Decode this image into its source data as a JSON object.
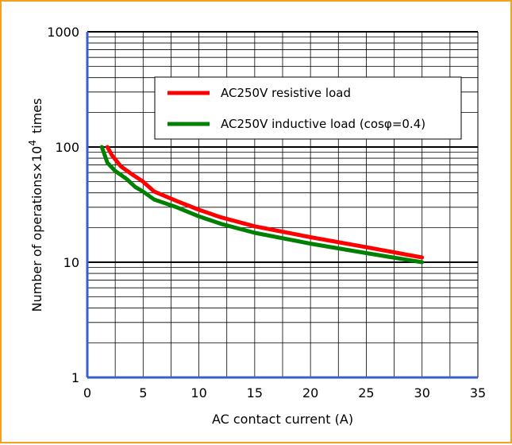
{
  "chart_data": {
    "type": "line",
    "title": "",
    "xlabel": "AC contact current (A)",
    "ylabel": {
      "prefix": "Number of operations×10",
      "superscript": "4",
      "suffix": "times"
    },
    "xlim": [
      0,
      35
    ],
    "ylim": [
      1,
      1000
    ],
    "y_scale": "log",
    "grid": true,
    "legend_position": "top-right",
    "x_ticks": [
      "0",
      "5",
      "10",
      "15",
      "20",
      "25",
      "30",
      "35"
    ],
    "y_ticks": [
      "1",
      "10",
      "100",
      "1000"
    ],
    "series": [
      {
        "name": "AC250V resistive load",
        "color": "#ff0000",
        "points": [
          [
            1.8,
            100
          ],
          [
            2.2,
            85
          ],
          [
            3,
            68
          ],
          [
            4,
            58
          ],
          [
            5,
            50
          ],
          [
            6,
            41
          ],
          [
            8,
            34
          ],
          [
            10,
            28.5
          ],
          [
            12,
            24.5
          ],
          [
            15,
            20.5
          ],
          [
            20,
            16.5
          ],
          [
            25,
            13.5
          ],
          [
            30,
            11
          ]
        ]
      },
      {
        "name": "AC250V inductive load (cosφ=0.4)",
        "color": "#008000",
        "points": [
          [
            1.3,
            100
          ],
          [
            1.8,
            73
          ],
          [
            2.5,
            62
          ],
          [
            3.5,
            53
          ],
          [
            4.3,
            45
          ],
          [
            5,
            41
          ],
          [
            6,
            35
          ],
          [
            8,
            30
          ],
          [
            10,
            25
          ],
          [
            12,
            21.5
          ],
          [
            15,
            18
          ],
          [
            20,
            14.5
          ],
          [
            25,
            12
          ],
          [
            30,
            10
          ]
        ]
      }
    ]
  }
}
